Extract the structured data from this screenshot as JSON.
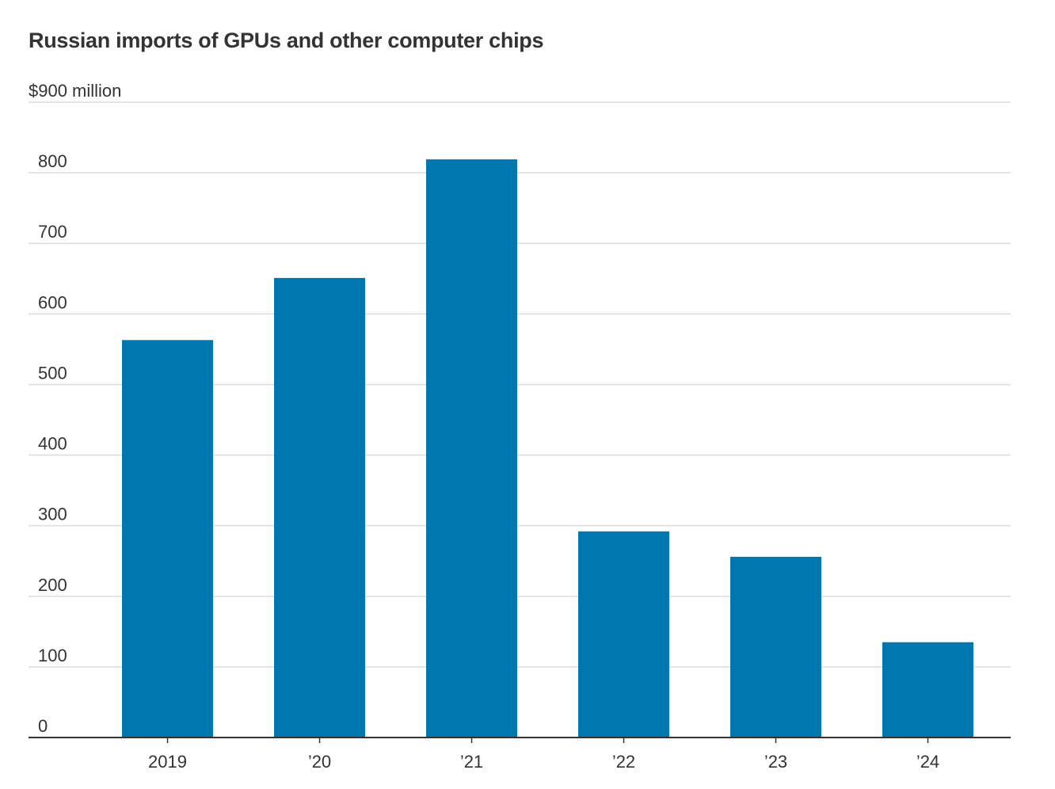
{
  "chart_data": {
    "type": "bar",
    "title": "Russian imports of GPUs and other computer chips",
    "unit_label": "$900 million",
    "categories": [
      "2019",
      "’20",
      "’21",
      "’22",
      "’23",
      "’24"
    ],
    "values": [
      563,
      651,
      819,
      292,
      256,
      135
    ],
    "ylim": [
      0,
      900
    ],
    "yticks": [
      0,
      100,
      200,
      300,
      400,
      500,
      600,
      700,
      800,
      900
    ],
    "ytick_labels": [
      "0",
      "100",
      "200",
      "300",
      "400",
      "500",
      "600",
      "700",
      "800",
      "$900 million"
    ],
    "grid": true,
    "legend": "none",
    "colors": {
      "bar": "#0077AE",
      "grid": "#DDDDDD",
      "axis": "#333333"
    }
  }
}
